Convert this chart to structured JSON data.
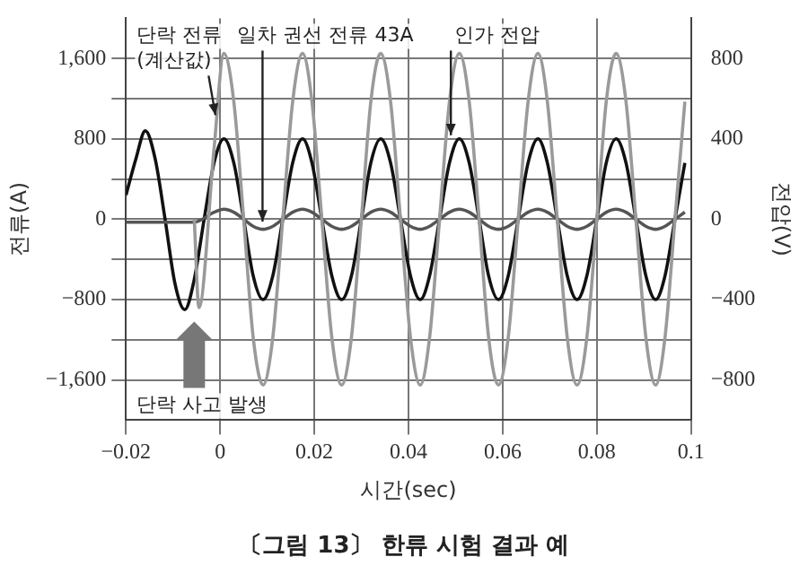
{
  "chart_data": {
    "type": "line",
    "title": "〔그림 13〕 한류 시험 결과 예",
    "xlabel": "시간(sec)",
    "ylabel": "전류(A)",
    "y2label": "전압(V)",
    "xlim": [
      -0.02,
      0.1
    ],
    "xticks": [
      {
        "value": -0.02,
        "label": "−0.02"
      },
      0,
      0.02,
      0.04,
      0.06,
      0.08,
      0.1
    ],
    "ylim": [
      -2000,
      2000
    ],
    "yticks": [
      {
        "value": -1600,
        "label": "−1,600"
      },
      {
        "value": -1200,
        "label": null
      },
      {
        "value": -800,
        "label": "−800"
      },
      {
        "value": -400,
        "label": null
      },
      0,
      {
        "value": 400,
        "label": null
      },
      800,
      {
        "value": 1200,
        "label": null
      },
      {
        "value": 1600,
        "label": "1,600"
      }
    ],
    "y2lim": [
      -1000,
      1000
    ],
    "y2ticks": [
      {
        "value": -800,
        "label": "−800"
      },
      {
        "value": -400,
        "label": "−400"
      },
      0,
      400,
      800
    ],
    "grid": true,
    "legend": false,
    "marker": "none",
    "line_style": "solid",
    "series": [
      {
        "color": "#9a9a9a",
        "x": [
          -0.0055,
          -0.0045,
          -0.0013,
          0.0008,
          0.0029,
          0.005,
          0.007,
          0.0091,
          0.0112,
          0.0133,
          0.0154,
          0.0175,
          0.0195,
          0.0216,
          0.0237,
          0.0258,
          0.0279,
          0.03,
          0.032,
          0.0341,
          0.0362,
          0.0383,
          0.0404,
          0.0425,
          0.0445,
          0.0466,
          0.0487,
          0.0508,
          0.0529,
          0.055,
          0.057,
          0.0591,
          0.0612,
          0.0633,
          0.0654,
          0.0675,
          0.0695,
          0.0716,
          0.0737,
          0.0758,
          0.0779,
          0.08,
          0.082,
          0.0841,
          0.0862,
          0.0883,
          0.0904,
          0.0925,
          0.0945,
          0.0966,
          0.0987
        ],
        "values": [
          0,
          -880,
          700,
          1650,
          1170,
          0,
          -1170,
          -1650,
          -1170,
          0,
          1170,
          1650,
          1170,
          0,
          -1170,
          -1650,
          -1170,
          0,
          1170,
          1650,
          1170,
          0,
          -1170,
          -1650,
          -1170,
          0,
          1170,
          1650,
          1170,
          0,
          -1170,
          -1650,
          -1170,
          0,
          1170,
          1650,
          1170,
          0,
          -1170,
          -1650,
          -1170,
          0,
          1170,
          1650,
          1170,
          0,
          -1170,
          -1650,
          -1170,
          0,
          1170
        ]
      },
      {
        "color": "#555555",
        "x": [
          -0.02,
          -0.0055,
          -0.0013,
          0.0008,
          0.0029,
          0.005,
          0.007,
          0.0091,
          0.0112,
          0.0133,
          0.0154,
          0.0175,
          0.0195,
          0.0216,
          0.0237,
          0.0258,
          0.0279,
          0.03,
          0.032,
          0.0341,
          0.0362,
          0.0383,
          0.0404,
          0.0425,
          0.0445,
          0.0466,
          0.0487,
          0.0508,
          0.0529,
          0.055,
          0.057,
          0.0591,
          0.0612,
          0.0633,
          0.0654,
          0.0675,
          0.0695,
          0.0716,
          0.0737,
          0.0758,
          0.0779,
          0.08,
          0.082,
          0.0841,
          0.0862,
          0.0883,
          0.0904,
          0.0925,
          0.0945,
          0.0966,
          0.0987
        ],
        "values": [
          -30,
          -30,
          70,
          100,
          70,
          0,
          -70,
          -100,
          -70,
          0,
          70,
          100,
          70,
          0,
          -70,
          -100,
          -70,
          0,
          70,
          100,
          70,
          0,
          -70,
          -100,
          -70,
          0,
          70,
          100,
          70,
          0,
          -70,
          -100,
          -70,
          0,
          70,
          100,
          70,
          0,
          -70,
          -100,
          -70,
          0,
          70,
          100,
          70,
          0,
          -70,
          -100,
          -70,
          0,
          70
        ]
      },
      {
        "color": "#111111",
        "axis": "y2",
        "x": [
          -0.02,
          -0.0179,
          -0.0159,
          -0.0138,
          -0.0117,
          -0.0096,
          -0.0075,
          -0.0055,
          -0.0034,
          -0.0013,
          0.0008,
          0.0029,
          0.005,
          0.007,
          0.0091,
          0.0112,
          0.0133,
          0.0154,
          0.0175,
          0.0195,
          0.0216,
          0.0237,
          0.0258,
          0.0279,
          0.03,
          0.032,
          0.0341,
          0.0362,
          0.0383,
          0.0404,
          0.0425,
          0.0445,
          0.0466,
          0.0487,
          0.0508,
          0.0529,
          0.055,
          0.057,
          0.0591,
          0.0612,
          0.0633,
          0.0654,
          0.0675,
          0.0695,
          0.0716,
          0.0737,
          0.0758,
          0.0779,
          0.08,
          0.082,
          0.0841,
          0.0862,
          0.0883,
          0.0904,
          0.0925,
          0.0945,
          0.0966,
          0.0987
        ],
        "values": [
          120,
          300,
          440,
          300,
          0,
          -320,
          -450,
          -300,
          0,
          280,
          400,
          280,
          0,
          -280,
          -400,
          -280,
          0,
          280,
          400,
          280,
          0,
          -280,
          -400,
          -280,
          0,
          280,
          400,
          280,
          0,
          -280,
          -400,
          -280,
          0,
          280,
          400,
          280,
          0,
          -280,
          -400,
          -280,
          0,
          280,
          400,
          280,
          0,
          -280,
          -400,
          -280,
          0,
          280,
          400,
          280,
          0,
          -280,
          -400,
          -280,
          0,
          280
        ]
      }
    ],
    "annotations": [
      {
        "text": "단락 전류\n(계산값)",
        "x": -0.001,
        "y": 1000
      },
      {
        "text": "일차 권선 전류 43A",
        "x": 0.009,
        "y": -60
      },
      {
        "text": "인가 전압",
        "x": 0.049,
        "y": 800
      },
      "단락 사고 발생"
    ]
  }
}
